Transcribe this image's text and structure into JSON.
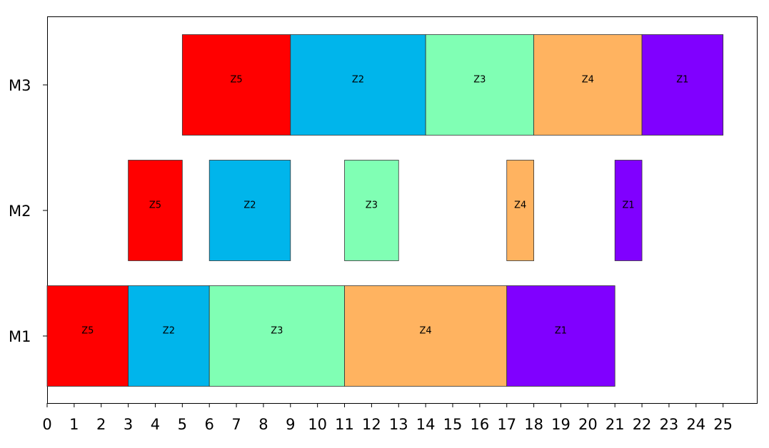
{
  "chart_data": {
    "type": "gantt",
    "title": "",
    "xlabel": "",
    "ylabel": "",
    "xlim": [
      0,
      26.25
    ],
    "x_ticks": [
      0,
      1,
      2,
      3,
      4,
      5,
      6,
      7,
      8,
      9,
      10,
      11,
      12,
      13,
      14,
      15,
      16,
      17,
      18,
      19,
      20,
      21,
      22,
      23,
      24,
      25
    ],
    "machines": [
      "M1",
      "M2",
      "M3"
    ],
    "grid": false,
    "colors": {
      "Z5": "#ff0000",
      "Z2": "#00b5eb",
      "Z3": "#80ffb4",
      "Z4": "#ffb360",
      "Z1": "#8000ff"
    },
    "tasks": [
      {
        "machine": "M1",
        "job": "Z5",
        "start": 0,
        "end": 3
      },
      {
        "machine": "M1",
        "job": "Z2",
        "start": 3,
        "end": 6
      },
      {
        "machine": "M1",
        "job": "Z3",
        "start": 6,
        "end": 11
      },
      {
        "machine": "M1",
        "job": "Z4",
        "start": 11,
        "end": 17
      },
      {
        "machine": "M1",
        "job": "Z1",
        "start": 17,
        "end": 21
      },
      {
        "machine": "M2",
        "job": "Z5",
        "start": 3,
        "end": 5
      },
      {
        "machine": "M2",
        "job": "Z2",
        "start": 6,
        "end": 9
      },
      {
        "machine": "M2",
        "job": "Z3",
        "start": 11,
        "end": 13
      },
      {
        "machine": "M2",
        "job": "Z4",
        "start": 17,
        "end": 18
      },
      {
        "machine": "M2",
        "job": "Z1",
        "start": 21,
        "end": 22
      },
      {
        "machine": "M3",
        "job": "Z5",
        "start": 5,
        "end": 9
      },
      {
        "machine": "M3",
        "job": "Z2",
        "start": 9,
        "end": 14
      },
      {
        "machine": "M3",
        "job": "Z3",
        "start": 14,
        "end": 18
      },
      {
        "machine": "M3",
        "job": "Z4",
        "start": 18,
        "end": 22
      },
      {
        "machine": "M3",
        "job": "Z1",
        "start": 22,
        "end": 25
      }
    ]
  }
}
